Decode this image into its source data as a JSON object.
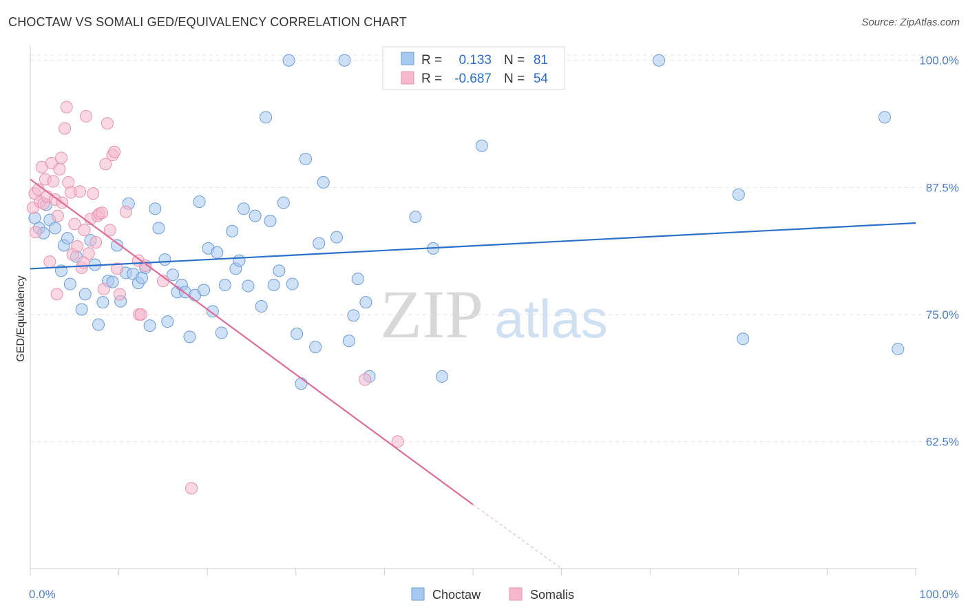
{
  "header": {
    "title": "CHOCTAW VS SOMALI GED/EQUIVALENCY CORRELATION CHART",
    "source": "Source: ZipAtlas.com"
  },
  "watermark": {
    "zip": "ZIP",
    "atlas": "atlas"
  },
  "legend": {
    "r_label": "R =",
    "n_label": "N =",
    "rows": [
      {
        "r": "0.133",
        "n": "81",
        "color": "#a8c8f0"
      },
      {
        "r": "-0.687",
        "n": "54",
        "color": "#f6b8cc"
      }
    ]
  },
  "bottom_legend": [
    {
      "label": "Choctaw",
      "color": "#a8c8f0"
    },
    {
      "label": "Somalis",
      "color": "#f6b8cc"
    }
  ],
  "chart_data": {
    "type": "scatter",
    "xlabel": "",
    "ylabel": "GED/Equivalency",
    "xlim": [
      0,
      100
    ],
    "ylim": [
      50,
      101.2
    ],
    "x_tick_labels": [
      "0.0%",
      "100.0%"
    ],
    "y_ticks": [
      62.5,
      75.0,
      87.5,
      100.0
    ],
    "y_tick_labels": [
      "62.5%",
      "75.0%",
      "87.5%",
      "100.0%"
    ],
    "grid": "horizontal dashed",
    "series": [
      {
        "name": "Choctaw",
        "color": "#a8c8f0",
        "stroke": "#6b9bd8",
        "line_color": "#2a6fc9",
        "trend": {
          "x": [
            0,
            100
          ],
          "y": [
            79.5,
            84.0
          ]
        },
        "points": [
          [
            0.5,
            84.5
          ],
          [
            1.0,
            83.5
          ],
          [
            1.5,
            83.0
          ],
          [
            1.8,
            85.8
          ],
          [
            2.2,
            84.3
          ],
          [
            2.8,
            83.5
          ],
          [
            3.5,
            79.3
          ],
          [
            3.8,
            81.8
          ],
          [
            4.2,
            82.5
          ],
          [
            4.5,
            78.0
          ],
          [
            5.2,
            80.7
          ],
          [
            5.8,
            75.5
          ],
          [
            6.2,
            77.0
          ],
          [
            6.8,
            82.3
          ],
          [
            7.3,
            79.9
          ],
          [
            7.7,
            74.0
          ],
          [
            8.2,
            76.2
          ],
          [
            8.8,
            78.3
          ],
          [
            9.3,
            78.2
          ],
          [
            9.8,
            81.8
          ],
          [
            10.2,
            76.3
          ],
          [
            10.8,
            79.1
          ],
          [
            11.1,
            85.9
          ],
          [
            11.6,
            79.0
          ],
          [
            12.2,
            78.1
          ],
          [
            12.6,
            78.6
          ],
          [
            13.0,
            79.6
          ],
          [
            13.5,
            73.9
          ],
          [
            14.1,
            85.4
          ],
          [
            14.5,
            83.5
          ],
          [
            15.2,
            80.4
          ],
          [
            15.5,
            74.3
          ],
          [
            16.1,
            78.9
          ],
          [
            16.6,
            77.2
          ],
          [
            17.1,
            77.9
          ],
          [
            17.5,
            77.2
          ],
          [
            18.0,
            72.8
          ],
          [
            18.6,
            76.9
          ],
          [
            19.1,
            86.1
          ],
          [
            19.6,
            77.4
          ],
          [
            20.1,
            81.5
          ],
          [
            20.6,
            75.3
          ],
          [
            21.1,
            81.1
          ],
          [
            21.6,
            73.2
          ],
          [
            22.0,
            77.9
          ],
          [
            22.8,
            83.2
          ],
          [
            23.2,
            79.5
          ],
          [
            23.6,
            80.3
          ],
          [
            24.1,
            85.4
          ],
          [
            24.6,
            77.8
          ],
          [
            25.4,
            84.7
          ],
          [
            26.1,
            75.8
          ],
          [
            26.6,
            94.4
          ],
          [
            27.1,
            84.2
          ],
          [
            27.5,
            77.9
          ],
          [
            28.1,
            79.3
          ],
          [
            28.6,
            86.0
          ],
          [
            29.2,
            100.0
          ],
          [
            29.6,
            78.0
          ],
          [
            30.1,
            73.1
          ],
          [
            30.6,
            68.2
          ],
          [
            31.1,
            90.3
          ],
          [
            32.2,
            71.8
          ],
          [
            32.6,
            82.0
          ],
          [
            33.1,
            88.0
          ],
          [
            34.6,
            82.6
          ],
          [
            35.5,
            100.0
          ],
          [
            36.0,
            72.4
          ],
          [
            36.5,
            74.9
          ],
          [
            37.0,
            78.5
          ],
          [
            37.9,
            76.2
          ],
          [
            38.3,
            68.9
          ],
          [
            43.5,
            84.6
          ],
          [
            45.5,
            81.5
          ],
          [
            46.5,
            68.9
          ],
          [
            51.0,
            91.6
          ],
          [
            71.0,
            100.0
          ],
          [
            80.0,
            86.8
          ],
          [
            80.5,
            72.6
          ],
          [
            96.5,
            94.4
          ],
          [
            98.0,
            71.6
          ]
        ]
      },
      {
        "name": "Somalis",
        "color": "#f6b8cc",
        "stroke": "#e891ae",
        "line_color": "#e06a98",
        "trend": {
          "x": [
            0,
            50
          ],
          "y": [
            88.3,
            56.3
          ]
        },
        "trend_dashed": {
          "x": [
            50,
            60
          ],
          "y": [
            56.3,
            50.0
          ]
        },
        "points": [
          [
            0.3,
            85.5
          ],
          [
            0.5,
            86.9
          ],
          [
            0.6,
            83.1
          ],
          [
            0.9,
            87.3
          ],
          [
            1.1,
            86.1
          ],
          [
            1.3,
            89.5
          ],
          [
            1.5,
            85.9
          ],
          [
            1.7,
            88.3
          ],
          [
            1.9,
            86.6
          ],
          [
            2.2,
            80.2
          ],
          [
            2.4,
            89.9
          ],
          [
            2.6,
            88.1
          ],
          [
            2.8,
            86.3
          ],
          [
            3.1,
            84.7
          ],
          [
            3.3,
            89.3
          ],
          [
            3.5,
            90.4
          ],
          [
            3.6,
            86.0
          ],
          [
            3.9,
            93.3
          ],
          [
            4.1,
            95.4
          ],
          [
            4.3,
            88.0
          ],
          [
            4.6,
            87.0
          ],
          [
            4.8,
            80.9
          ],
          [
            5.0,
            83.9
          ],
          [
            5.3,
            81.7
          ],
          [
            5.6,
            87.1
          ],
          [
            5.8,
            79.6
          ],
          [
            6.1,
            83.3
          ],
          [
            6.3,
            94.5
          ],
          [
            6.6,
            81.0
          ],
          [
            6.8,
            84.4
          ],
          [
            7.1,
            86.9
          ],
          [
            7.4,
            82.1
          ],
          [
            7.6,
            84.7
          ],
          [
            7.8,
            84.9
          ],
          [
            8.1,
            85.0
          ],
          [
            8.3,
            77.5
          ],
          [
            8.5,
            89.8
          ],
          [
            8.7,
            93.8
          ],
          [
            9.0,
            83.3
          ],
          [
            9.3,
            90.7
          ],
          [
            9.5,
            91.0
          ],
          [
            9.8,
            79.5
          ],
          [
            10.1,
            77.0
          ],
          [
            10.8,
            85.1
          ],
          [
            12.2,
            80.3
          ],
          [
            12.3,
            75.0
          ],
          [
            12.5,
            75.0
          ],
          [
            13.0,
            79.8
          ],
          [
            15.0,
            78.3
          ],
          [
            18.2,
            57.9
          ],
          [
            37.8,
            68.6
          ],
          [
            41.5,
            62.5
          ],
          [
            3.0,
            77.0
          ],
          [
            6.0,
            80.1
          ]
        ]
      }
    ]
  }
}
